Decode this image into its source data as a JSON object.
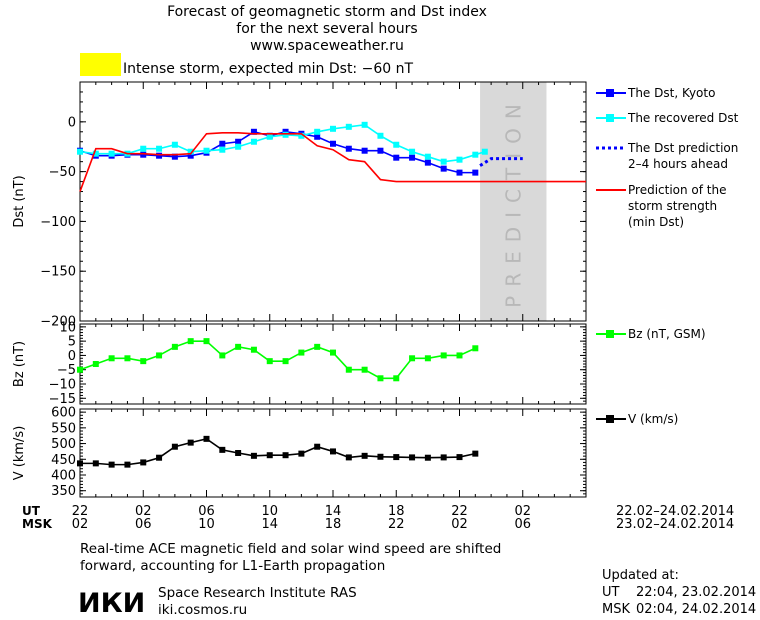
{
  "header": {
    "title_line1": "Forecast of geomagnetic storm and Dst index",
    "title_line2": "for the next several hours",
    "title_line3": "www.spaceweather.ru",
    "storm_swatch_color": "#ffff00",
    "storm_text": "Intense storm, expected min Dst: −60 nT"
  },
  "legend": {
    "dst_kyoto": "The Dst, Kyoto",
    "dst_recovered": "The recovered Dst",
    "dst_prediction_1": "The Dst prediction",
    "dst_prediction_2": "2–4 hours ahead",
    "storm_strength_1": "Prediction of the",
    "storm_strength_2": "storm strength",
    "storm_strength_3": "(min Dst)",
    "bz": "Bz (nT, GSM)",
    "v": "V (km/s)"
  },
  "time_axis": {
    "ut_label": "UT",
    "msk_label": "MSK",
    "ut_ticks": [
      "22",
      "02",
      "06",
      "10",
      "14",
      "18",
      "22",
      "02"
    ],
    "msk_ticks": [
      "02",
      "06",
      "10",
      "14",
      "18",
      "22",
      "02",
      "06"
    ],
    "ut_range": "22.02–24.02.2014",
    "msk_range": "23.02–24.02.2014"
  },
  "footer": {
    "note_line1": "Real-time ACE magnetic field and solar wind speed are shifted",
    "note_line2": "forward, accounting for L1-Earth propagation",
    "logo_text": "ИКИ",
    "institute": "Space Research Institute RAS",
    "site": "iki.cosmos.ru",
    "updated_label": "Updated at:",
    "updated_ut_label": "UT",
    "updated_ut": "22:04, 23.02.2014",
    "updated_msk_label": "MSK",
    "updated_msk": "02:04, 24.02.2014"
  },
  "chart_data": [
    {
      "type": "line",
      "ylabel": "Dst (nT)",
      "ylim": [
        -200,
        40
      ],
      "yticks": [
        0,
        -50,
        -100,
        -150,
        -200
      ],
      "x_unit": "hours UT from 22:00, 22.02.2014",
      "xlim": [
        0,
        32
      ],
      "prediction_band": {
        "x": [
          25.3,
          29.5
        ],
        "label": "PREDICTION",
        "color": "#d9d9d9"
      },
      "series": [
        {
          "name": "The Dst, Kyoto",
          "color": "#0000ff",
          "marker": "square",
          "x": [
            0,
            1,
            2,
            3,
            4,
            5,
            6,
            7,
            8,
            9,
            10,
            11,
            12,
            13,
            14,
            15,
            16,
            17,
            18,
            19,
            20,
            21,
            22,
            23,
            24,
            25
          ],
          "y": [
            -29,
            -34,
            -34,
            -33,
            -33,
            -34,
            -35,
            -34,
            -31,
            -22,
            -20,
            -10,
            -14,
            -10,
            -12,
            -15,
            -22,
            -27,
            -29,
            -29,
            -36,
            -36,
            -41,
            -47,
            -51,
            -51
          ]
        },
        {
          "name": "The recovered Dst",
          "color": "#00ffff",
          "marker": "square",
          "x": [
            0,
            1,
            2,
            3,
            4,
            5,
            6,
            7,
            8,
            9,
            10,
            11,
            12,
            13,
            14,
            15,
            16,
            17,
            18,
            19,
            20,
            21,
            22,
            23,
            24,
            25,
            25.6
          ],
          "y": [
            -30,
            -32,
            -32,
            -32,
            -27,
            -27,
            -23,
            -30,
            -29,
            -28,
            -25,
            -20,
            -15,
            -13,
            -14,
            -10,
            -7,
            -5,
            -3,
            -14,
            -23,
            -30,
            -35,
            -40,
            -38,
            -33,
            -30
          ]
        },
        {
          "name": "The Dst prediction",
          "color": "#0000ff",
          "dashed": true,
          "x": [
            25.3,
            26,
            28
          ],
          "y": [
            -44,
            -37,
            -37
          ]
        },
        {
          "name": "Prediction of the storm strength (min Dst)",
          "color": "#ff0000",
          "x": [
            -1,
            0,
            1,
            2,
            3,
            4,
            5,
            6,
            7,
            8,
            9,
            10,
            11,
            12,
            13,
            14,
            15,
            16,
            17,
            18,
            19,
            20,
            21,
            22,
            23,
            24,
            25,
            26,
            27,
            28,
            29,
            30,
            31,
            32
          ],
          "y": [
            -70,
            -70,
            -27,
            -27,
            -32,
            -32,
            -33,
            -33,
            -32,
            -12,
            -11,
            -11,
            -12,
            -12,
            -12,
            -12,
            -24,
            -28,
            -38,
            -40,
            -58,
            -60,
            -60,
            -60,
            -60,
            -60,
            -60,
            -60,
            -60,
            -60,
            -60,
            -60,
            -60,
            -60
          ]
        }
      ]
    },
    {
      "type": "line",
      "ylabel": "Bz (nT)",
      "ylim": [
        -17,
        11
      ],
      "yticks": [
        10,
        5,
        0,
        -5,
        -10,
        -15
      ],
      "xlim": [
        0,
        32
      ],
      "series": [
        {
          "name": "Bz (nT, GSM)",
          "color": "#00ff00",
          "marker": "square",
          "x": [
            0,
            1,
            2,
            3,
            4,
            5,
            6,
            7,
            8,
            9,
            10,
            11,
            12,
            13,
            14,
            15,
            16,
            17,
            18,
            19,
            20,
            21,
            22,
            23,
            24,
            25
          ],
          "y": [
            -5,
            -3,
            -1,
            -1,
            -2,
            0,
            3,
            5,
            5,
            0,
            3,
            2,
            -2,
            -2,
            1,
            3,
            1,
            -5,
            -5,
            -8,
            -8,
            -1,
            -1,
            0,
            0,
            2.5
          ]
        }
      ]
    },
    {
      "type": "line",
      "ylabel": "V (km/s)",
      "ylim": [
        330,
        610
      ],
      "yticks": [
        600,
        550,
        500,
        450,
        400,
        350
      ],
      "xlim": [
        0,
        32
      ],
      "series": [
        {
          "name": "V (km/s)",
          "color": "#000000",
          "marker": "square",
          "x": [
            0,
            1,
            2,
            3,
            4,
            5,
            6,
            7,
            8,
            9,
            10,
            11,
            12,
            13,
            14,
            15,
            16,
            17,
            18,
            19,
            20,
            21,
            22,
            23,
            24,
            25
          ],
          "y": [
            437,
            437,
            433,
            433,
            440,
            455,
            490,
            503,
            515,
            480,
            470,
            461,
            463,
            463,
            468,
            490,
            475,
            456,
            461,
            458,
            457,
            456,
            455,
            456,
            457,
            468
          ]
        }
      ]
    }
  ]
}
